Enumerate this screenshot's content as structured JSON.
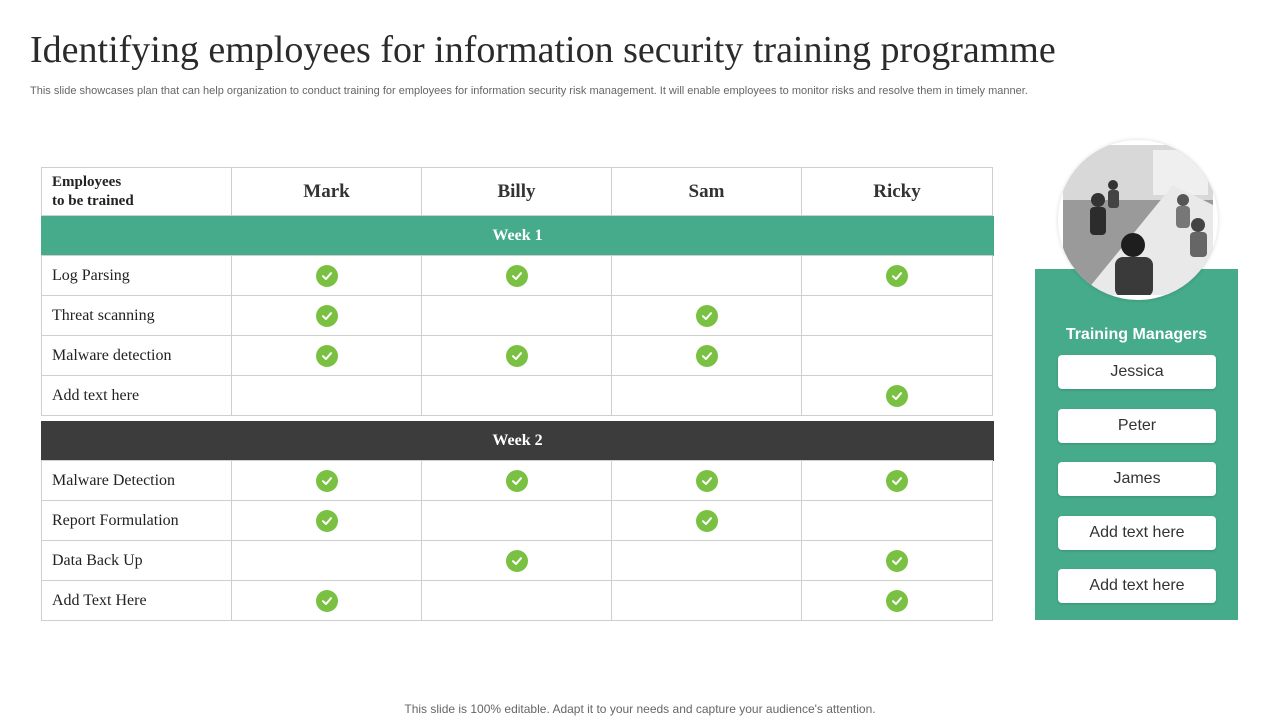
{
  "title": "Identifying employees for information security training programme",
  "subtitle": "This slide showcases plan that can help organization to conduct training for employees for information security risk management. It will enable employees to monitor risks and resolve them in timely manner.",
  "table": {
    "header_label_line1": "Employees",
    "header_label_line2": "to be trained",
    "employees": [
      "Mark",
      "Billy",
      "Sam",
      "Ricky"
    ],
    "week1": {
      "label": "Week 1",
      "rows": [
        {
          "label": "Log Parsing",
          "checks": [
            true,
            true,
            false,
            true
          ]
        },
        {
          "label": "Threat scanning",
          "checks": [
            true,
            false,
            true,
            false
          ]
        },
        {
          "label": "Malware detection",
          "checks": [
            true,
            true,
            true,
            false
          ]
        },
        {
          "label": "Add text here",
          "checks": [
            false,
            false,
            false,
            true
          ]
        }
      ]
    },
    "week2": {
      "label": "Week 2",
      "rows": [
        {
          "label": "Malware Detection",
          "checks": [
            true,
            true,
            true,
            true
          ]
        },
        {
          "label": "Report Formulation",
          "checks": [
            true,
            false,
            true,
            false
          ]
        },
        {
          "label": "Data Back Up",
          "checks": [
            false,
            true,
            false,
            true
          ]
        },
        {
          "label": "Add Text Here",
          "checks": [
            true,
            false,
            false,
            true
          ]
        }
      ]
    }
  },
  "managers": {
    "title": "Training Managers",
    "names": [
      "Jessica",
      "Peter",
      "James",
      "Add text here",
      "Add text here"
    ]
  },
  "footer": "This slide is 100% editable. Adapt it to your needs and capture your audience's attention.",
  "colors": {
    "accent_green": "#45ab8a",
    "week2_bar": "#3c3c3c",
    "check_green": "#7ac143"
  },
  "icons": {
    "check": "check-circle-icon",
    "photo": "team-meeting-photo"
  }
}
